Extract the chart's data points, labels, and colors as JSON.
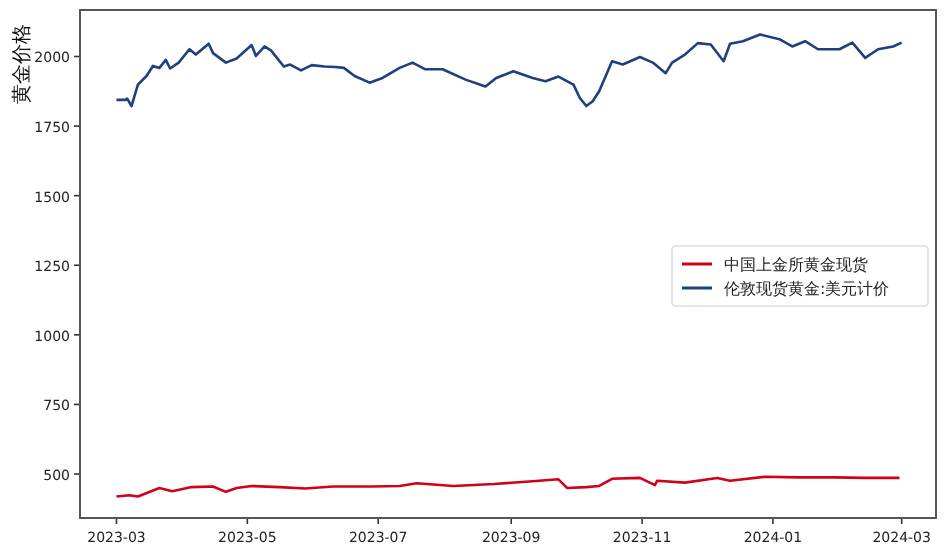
{
  "chart_data": {
    "type": "line",
    "ylabel": "黄金价格",
    "xlim": [
      "2023-02-12",
      "2024-03-17"
    ],
    "ylim": [
      342,
      2167
    ],
    "yticks": [
      500,
      750,
      1000,
      1250,
      1500,
      1750,
      2000
    ],
    "xticks": [
      "2023-03",
      "2023-05",
      "2023-07",
      "2023-09",
      "2023-11",
      "2024-01",
      "2024-03"
    ],
    "legend": "right",
    "grid": false,
    "series": [
      {
        "name": "中国上金所黄金现货",
        "color": "#d0021b",
        "x": [
          "2023-03-01",
          "2023-03-07",
          "2023-03-11",
          "2023-03-21",
          "2023-03-27",
          "2023-04-05",
          "2023-04-15",
          "2023-04-21",
          "2023-04-26",
          "2023-05-03",
          "2023-05-16",
          "2023-05-28",
          "2023-06-10",
          "2023-06-28",
          "2023-07-11",
          "2023-07-19",
          "2023-08-05",
          "2023-08-24",
          "2023-09-11",
          "2023-09-23",
          "2023-09-27",
          "2023-10-06",
          "2023-10-12",
          "2023-10-18",
          "2023-10-31",
          "2023-11-07",
          "2023-11-08",
          "2023-11-21",
          "2023-12-06",
          "2023-12-12",
          "2023-12-28",
          "2024-01-13",
          "2024-01-29",
          "2024-02-13",
          "2024-02-29"
        ],
        "values": [
          419,
          424,
          419,
          450,
          438,
          453,
          455,
          436,
          450,
          457,
          453,
          448,
          455,
          455,
          457,
          467,
          457,
          464,
          474,
          481,
          450,
          453,
          457,
          483,
          486,
          460,
          476,
          469,
          486,
          476,
          490,
          488,
          488,
          486,
          486
        ]
      },
      {
        "name": "伦敦现货黄金:美元计价",
        "color": "#1f3f7f",
        "x": [
          "2023-03-01",
          "2023-03-05",
          "2023-03-06",
          "2023-03-08",
          "2023-03-11",
          "2023-03-15",
          "2023-03-18",
          "2023-03-21",
          "2023-03-24",
          "2023-03-26",
          "2023-03-30",
          "2023-04-04",
          "2023-04-07",
          "2023-04-13",
          "2023-04-15",
          "2023-04-21",
          "2023-04-26",
          "2023-05-03",
          "2023-05-05",
          "2023-05-09",
          "2023-05-12",
          "2023-05-18",
          "2023-05-21",
          "2023-05-26",
          "2023-05-31",
          "2023-06-06",
          "2023-06-11",
          "2023-06-15",
          "2023-06-20",
          "2023-06-27",
          "2023-07-03",
          "2023-07-11",
          "2023-07-17",
          "2023-07-23",
          "2023-07-31",
          "2023-08-11",
          "2023-08-20",
          "2023-08-25",
          "2023-09-02",
          "2023-09-11",
          "2023-09-17",
          "2023-09-23",
          "2023-09-30",
          "2023-10-03",
          "2023-10-06",
          "2023-10-09",
          "2023-10-12",
          "2023-10-18",
          "2023-10-23",
          "2023-10-31",
          "2023-11-06",
          "2023-11-12",
          "2023-11-15",
          "2023-11-21",
          "2023-11-27",
          "2023-12-03",
          "2023-12-09",
          "2023-12-12",
          "2023-12-18",
          "2023-12-26",
          "2024-01-04",
          "2024-01-10",
          "2024-01-16",
          "2024-01-22",
          "2024-02-01",
          "2024-02-07",
          "2024-02-13",
          "2024-02-19",
          "2024-02-26",
          "2024-03-01"
        ],
        "values": [
          1844,
          1844,
          1849,
          1822,
          1899,
          1930,
          1966,
          1959,
          1988,
          1957,
          1978,
          2026,
          2007,
          2046,
          2012,
          1978,
          1993,
          2041,
          2002,
          2036,
          2022,
          1964,
          1971,
          1950,
          1969,
          1964,
          1962,
          1959,
          1930,
          1906,
          1923,
          1959,
          1978,
          1954,
          1954,
          1916,
          1892,
          1923,
          1947,
          1923,
          1911,
          1928,
          1899,
          1851,
          1822,
          1839,
          1875,
          1983,
          1971,
          1998,
          1978,
          1940,
          1978,
          2007,
          2048,
          2043,
          1983,
          2046,
          2055,
          2079,
          2062,
          2036,
          2055,
          2026,
          2026,
          2050,
          1995,
          2026,
          2036,
          2050
        ]
      }
    ]
  }
}
